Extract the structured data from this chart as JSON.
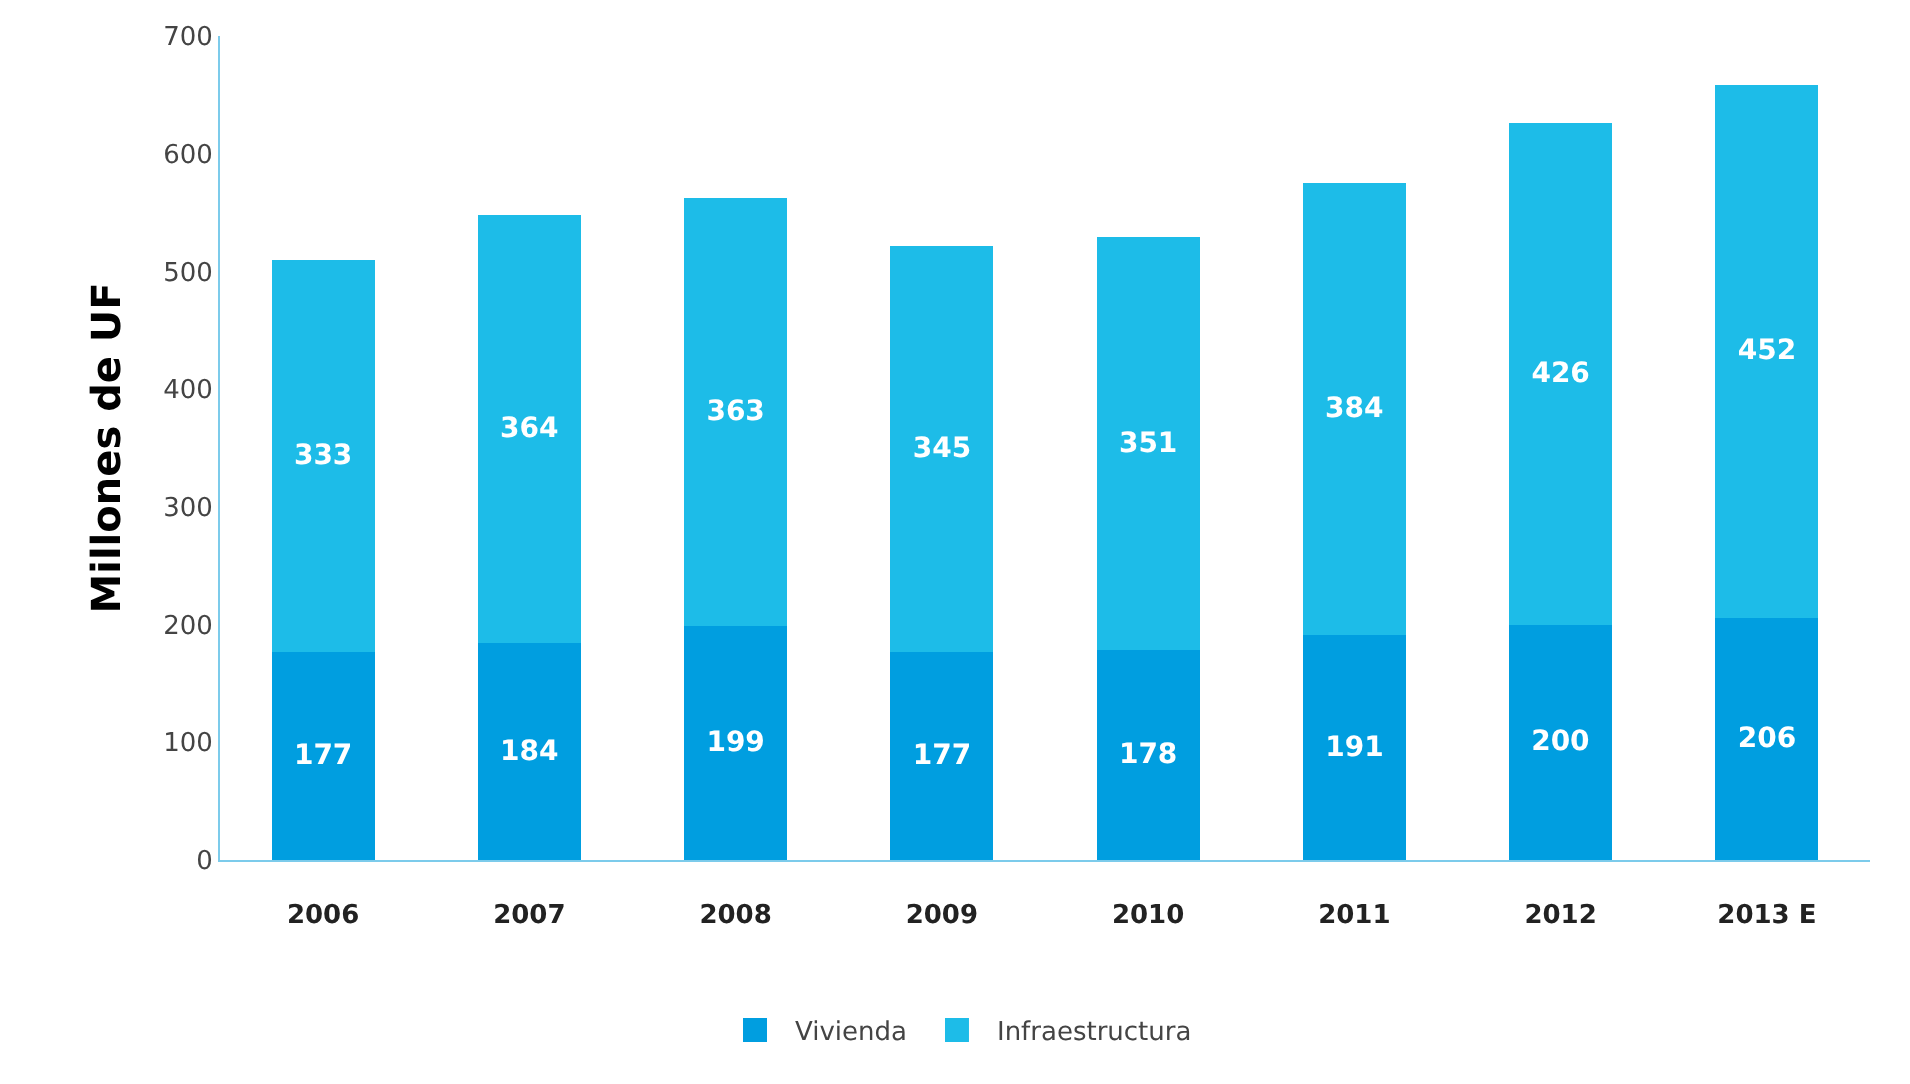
{
  "chart_data": {
    "type": "bar",
    "stacked": true,
    "ylabel": "Millones de UF",
    "categories": [
      "2006",
      "2007",
      "2008",
      "2009",
      "2010",
      "2011",
      "2012",
      "2013 E"
    ],
    "series": [
      {
        "name": "Vivienda",
        "color": "#009ee0",
        "values": [
          177,
          184,
          199,
          177,
          178,
          191,
          200,
          206
        ]
      },
      {
        "name": "Infraestructura",
        "color": "#1dbce8",
        "values": [
          333,
          364,
          363,
          345,
          351,
          384,
          426,
          452
        ]
      }
    ],
    "ylim": [
      0,
      700
    ],
    "yticks": [
      0,
      100,
      200,
      300,
      400,
      500,
      600,
      700
    ],
    "data_labels": true,
    "legend": "bottom"
  }
}
